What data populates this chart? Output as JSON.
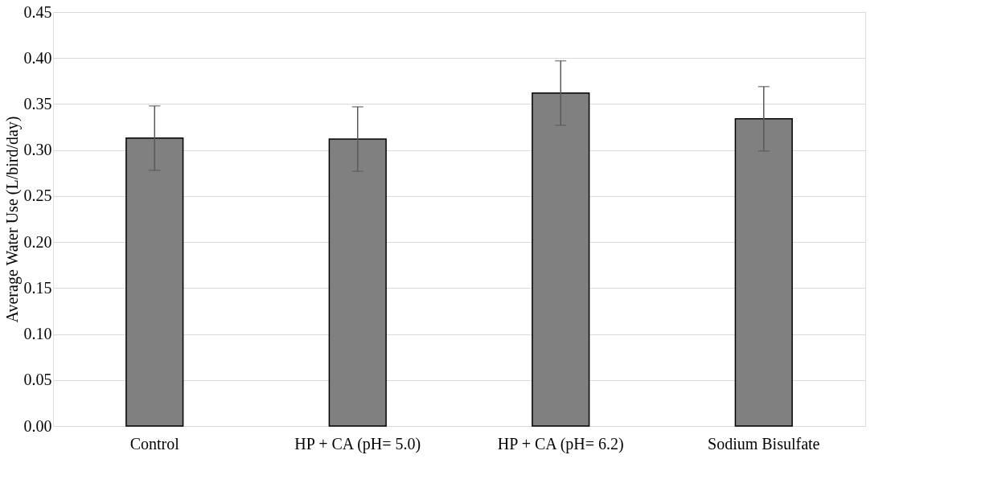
{
  "chart_data": {
    "type": "bar",
    "ylabel": "Average Water Use (L/bird/day)",
    "categories": [
      "Control",
      "HP + CA (pH= 5.0)",
      "HP + CA (pH= 6.2)",
      "Sodium Bisulfate"
    ],
    "values": [
      0.313,
      0.312,
      0.362,
      0.334
    ],
    "errors": [
      0.035,
      0.035,
      0.035,
      0.035
    ],
    "color": "#808080",
    "ylim": [
      0,
      0.45
    ],
    "yticks": [
      {
        "value": 0,
        "label": "0.00"
      },
      {
        "value": 0.05,
        "label": "0.05"
      },
      {
        "value": 0.1,
        "label": "0.10"
      },
      {
        "value": 0.15,
        "label": "0.15"
      },
      {
        "value": 0.2,
        "label": "0.20"
      },
      {
        "value": 0.25,
        "label": "0.25"
      },
      {
        "value": 0.3,
        "label": "0.30"
      },
      {
        "value": 0.35,
        "label": "0.35"
      },
      {
        "value": 0.4,
        "label": "0.40"
      },
      {
        "value": 0.45,
        "label": "0.45"
      }
    ],
    "grid": "y"
  }
}
